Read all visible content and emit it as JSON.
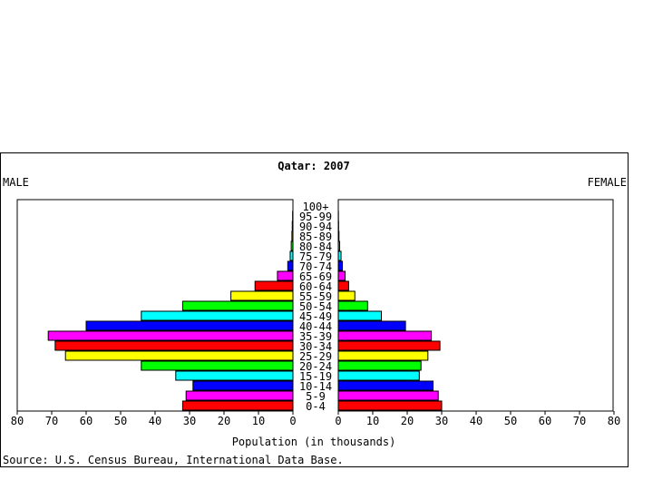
{
  "chart_data": {
    "type": "bar",
    "title": "Qatar: 2007",
    "left_label": "MALE",
    "right_label": "FEMALE",
    "xlabel": "Population (in thousands)",
    "source": "Source: U.S. Census Bureau, International Data Base.",
    "xlim": [
      0,
      80
    ],
    "ticks_left": [
      "80",
      "70",
      "60",
      "50",
      "40",
      "30",
      "20",
      "10",
      "0"
    ],
    "ticks_right": [
      "0",
      "10",
      "20",
      "30",
      "40",
      "50",
      "60",
      "70",
      "80"
    ],
    "tick_values_left": [
      80,
      70,
      60,
      50,
      40,
      30,
      20,
      10,
      0
    ],
    "tick_values_right": [
      0,
      10,
      20,
      30,
      40,
      50,
      60,
      70,
      80
    ],
    "categories": [
      "0-4",
      "5-9",
      "10-14",
      "15-19",
      "20-24",
      "25-29",
      "30-34",
      "35-39",
      "40-44",
      "45-49",
      "50-54",
      "55-59",
      "60-64",
      "65-69",
      "70-74",
      "75-79",
      "80-84",
      "85-89",
      "90-94",
      "95-99",
      "100+"
    ],
    "series": [
      {
        "name": "MALE",
        "values": [
          32,
          31,
          29,
          34,
          44,
          66,
          69,
          71,
          60,
          44,
          32,
          18,
          11,
          4.5,
          1.5,
          0.8,
          0.5,
          0.3,
          0.2,
          0.1,
          0
        ]
      },
      {
        "name": "FEMALE",
        "values": [
          30,
          29,
          27.5,
          23.5,
          24,
          26,
          29.5,
          27,
          19.5,
          12.5,
          8.5,
          4.8,
          3,
          2,
          1.2,
          0.8,
          0.4,
          0.2,
          0.1,
          0.05,
          0
        ]
      }
    ],
    "colors": [
      "#ff0000",
      "#ff00ff",
      "#0000ff",
      "#00ffff",
      "#00ff00",
      "#ffff00",
      "#ff0000",
      "#ff00ff",
      "#0000ff",
      "#00ffff",
      "#00ff00",
      "#ffff00",
      "#ff0000",
      "#ff00ff",
      "#0000ff",
      "#00ffff",
      "#00ff00",
      "#ffff00",
      "#ff0000",
      "#ff00ff",
      "#0000ff"
    ]
  }
}
